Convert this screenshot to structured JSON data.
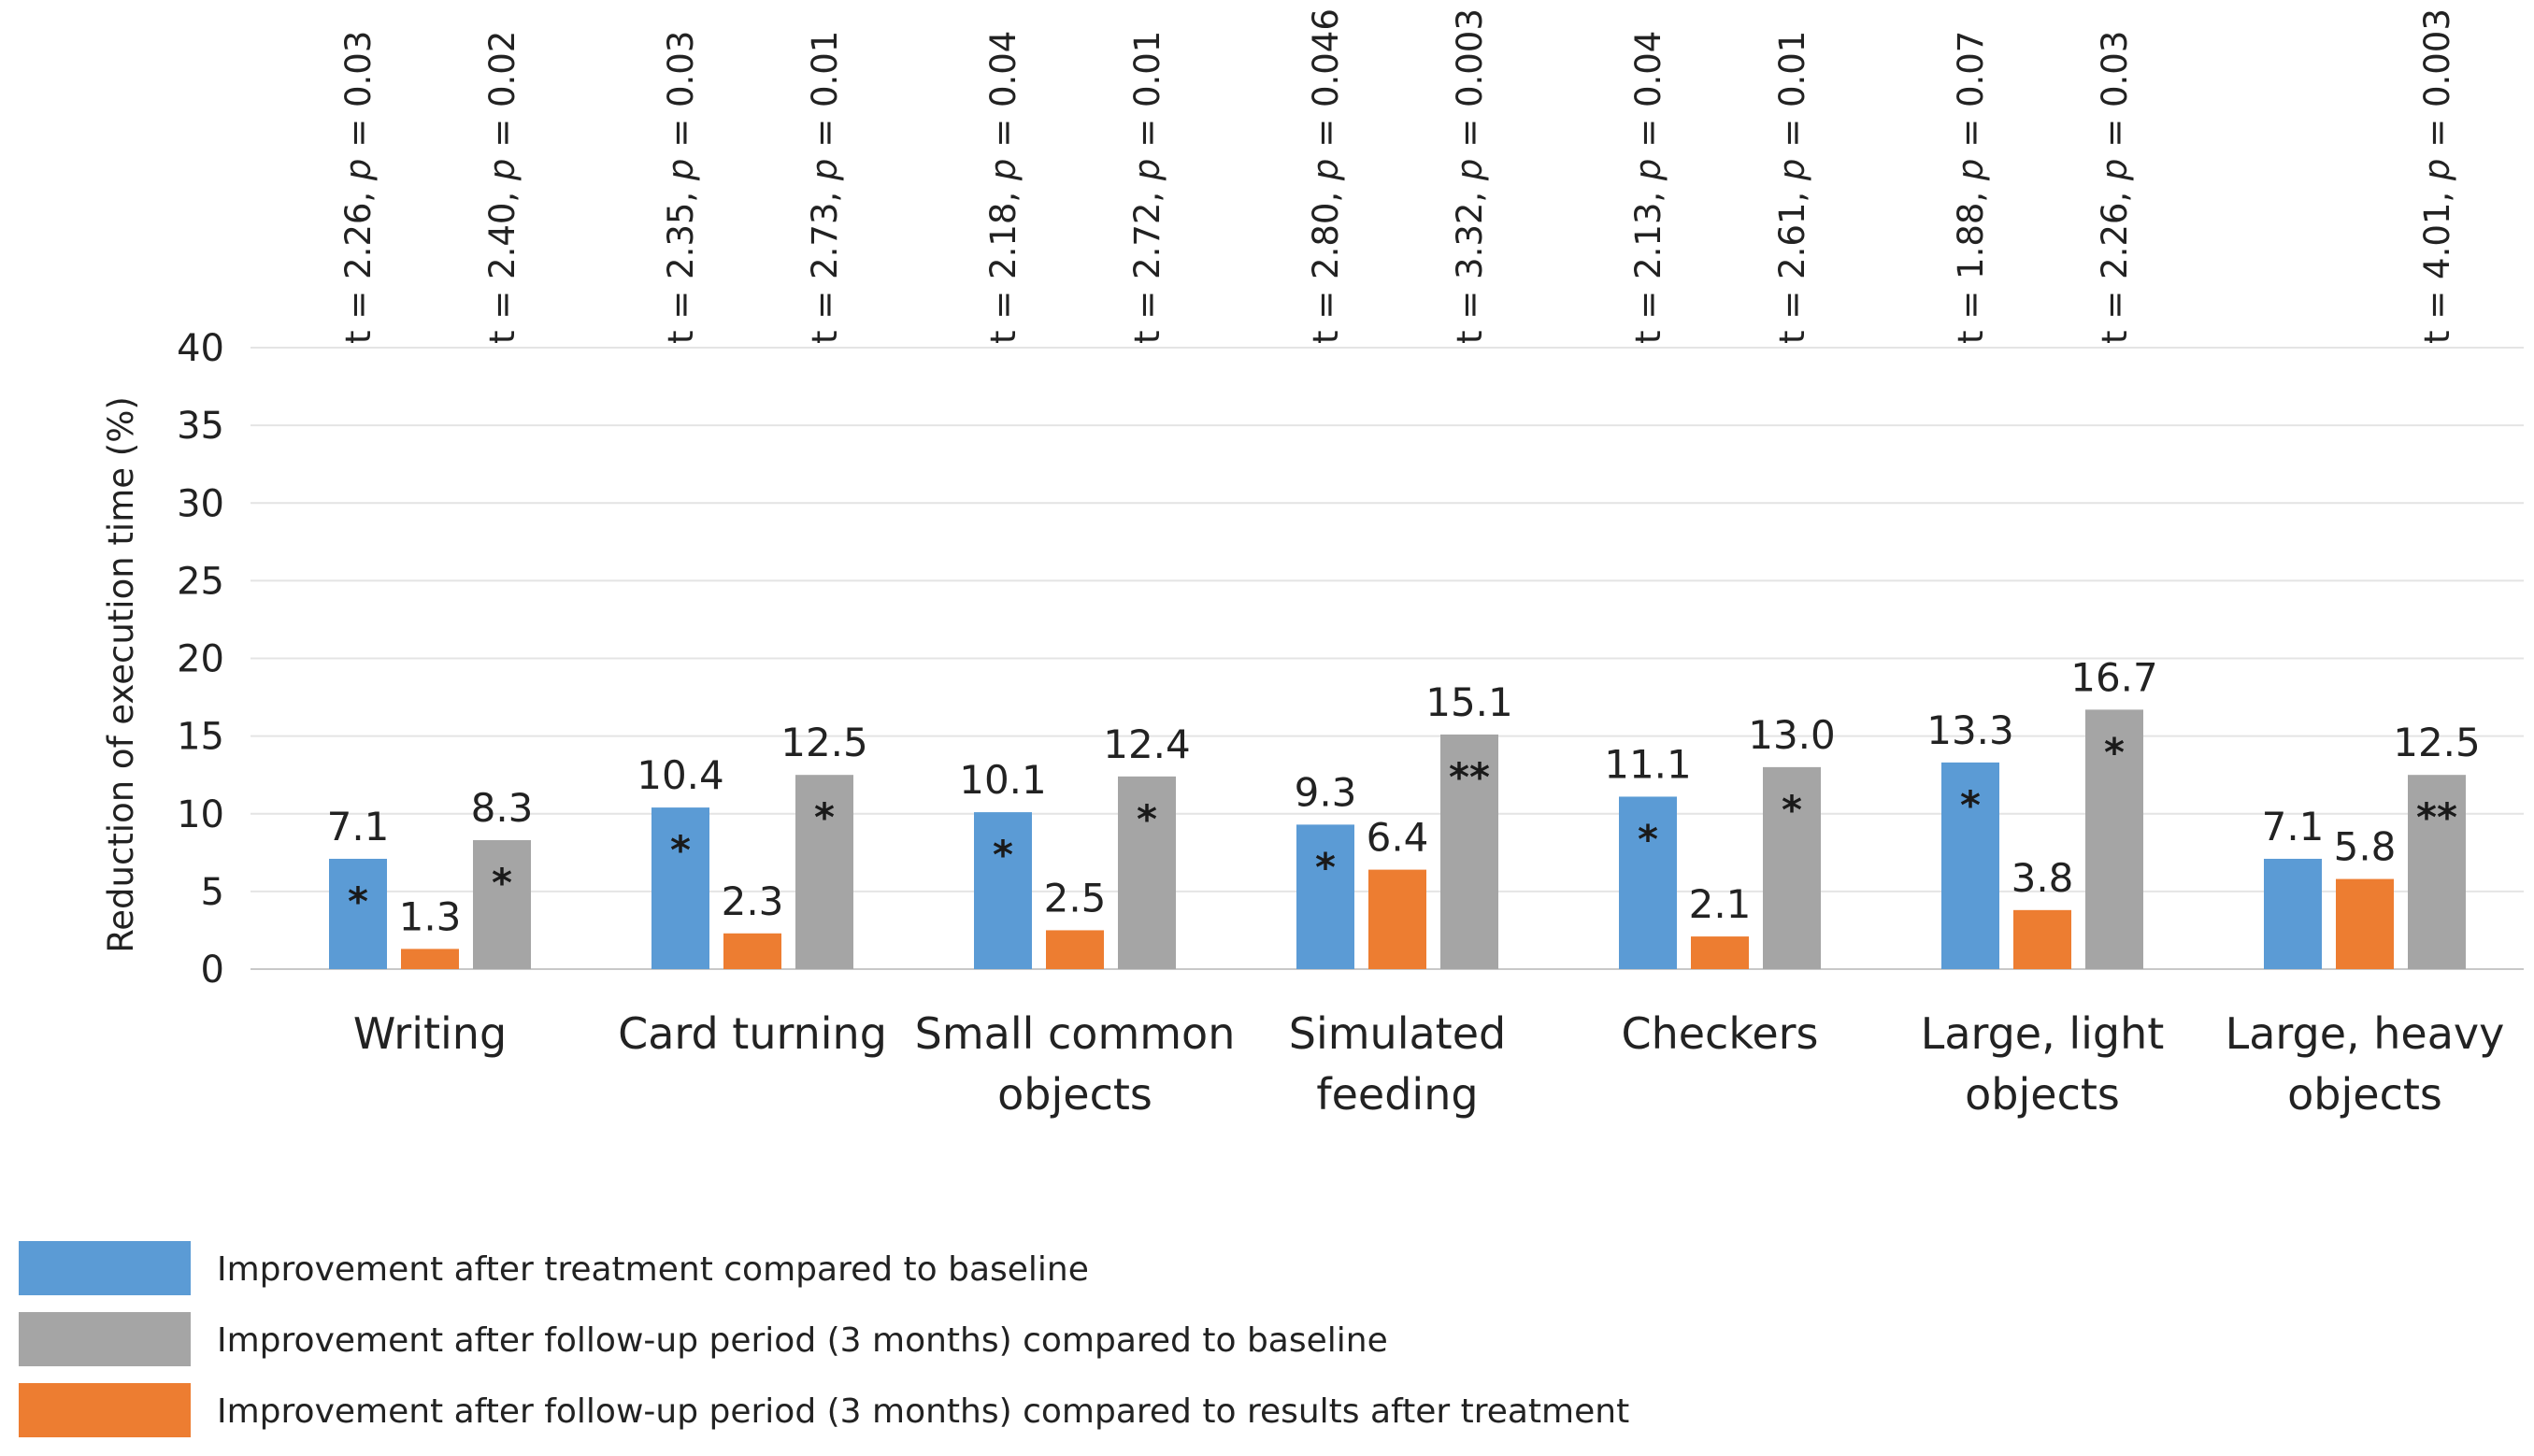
{
  "chart_data": {
    "type": "bar",
    "ylabel": "Reduction of execution time  (%)",
    "ylim": [
      0,
      40
    ],
    "yticks": [
      0,
      5,
      10,
      15,
      20,
      25,
      30,
      35,
      40
    ],
    "grid": true,
    "legend_position": "bottom-left",
    "categories": [
      {
        "label": [
          "Writing"
        ]
      },
      {
        "label": [
          "Card turning"
        ]
      },
      {
        "label": [
          "Small common",
          "objects"
        ]
      },
      {
        "label": [
          "Simulated",
          "feeding"
        ]
      },
      {
        "label": [
          "Checkers"
        ]
      },
      {
        "label": [
          "Large, light",
          "objects"
        ]
      },
      {
        "label": [
          "Large, heavy",
          "objects"
        ]
      }
    ],
    "series": [
      {
        "name": "Improvement after treatment compared to baseline",
        "color": "#5b9bd5",
        "values": [
          7.1,
          10.4,
          10.1,
          9.3,
          11.1,
          13.3,
          7.1
        ],
        "labels": [
          "7.1",
          "10.4",
          "10.1",
          "9.3",
          "11.1",
          "13.3",
          "7.1"
        ],
        "significance": [
          "*",
          "*",
          "*",
          "*",
          "*",
          "*",
          ""
        ],
        "tests": [
          {
            "stat": "t = 2.26, ",
            "p": "p",
            "eq": " = 0.03"
          },
          {
            "stat": "t = 2.35, ",
            "p": "p",
            "eq": " = 0.03"
          },
          {
            "stat": "t = 2.18, ",
            "p": "p",
            "eq": " = 0.04"
          },
          {
            "stat": "t = 2.80, ",
            "p": "p",
            "eq": " = 0.046"
          },
          {
            "stat": "t = 2.13, ",
            "p": "p",
            "eq": " = 0.04"
          },
          {
            "stat": "t = 1.88, ",
            "p": "p",
            "eq": " = 0.07"
          },
          null
        ]
      },
      {
        "name": "Improvement after follow-up period (3 months) compared to results after treatment",
        "color": "#ed7d31",
        "values": [
          1.3,
          2.3,
          2.5,
          6.4,
          2.1,
          3.8,
          5.8
        ],
        "labels": [
          "1.3",
          "2.3",
          "2.5",
          "6.4",
          "2.1",
          "3.8",
          "5.8"
        ],
        "significance": [
          "",
          "",
          "",
          "",
          "",
          "",
          ""
        ],
        "tests": [
          null,
          null,
          null,
          null,
          null,
          null,
          null
        ]
      },
      {
        "name": "Improvement after follow-up period (3 months) compared to baseline",
        "color": "#a5a5a5",
        "values": [
          8.3,
          12.5,
          12.4,
          15.1,
          13.0,
          16.7,
          12.5
        ],
        "labels": [
          "8.3",
          "12.5",
          "12.4",
          "15.1",
          "13.0",
          "16.7",
          "12.5"
        ],
        "significance": [
          "*",
          "*",
          "*",
          "**",
          "*",
          "*",
          "**"
        ],
        "tests": [
          {
            "stat": "t = 2.40, ",
            "p": "p",
            "eq": " = 0.02"
          },
          {
            "stat": "t = 2.73, ",
            "p": "p",
            "eq": " = 0.01"
          },
          {
            "stat": "t = 2.72, ",
            "p": "p",
            "eq": " = 0.01"
          },
          {
            "stat": "t = 3.32, ",
            "p": "p",
            "eq": " = 0.003"
          },
          {
            "stat": "t = 2.61, ",
            "p": "p",
            "eq": " = 0.01"
          },
          {
            "stat": "t = 2.26, ",
            "p": "p",
            "eq": " = 0.03"
          },
          {
            "stat": "t = 4.01, ",
            "p": "p",
            "eq": " = 0.003"
          }
        ]
      }
    ],
    "legend_order": [
      0,
      2,
      1
    ]
  }
}
